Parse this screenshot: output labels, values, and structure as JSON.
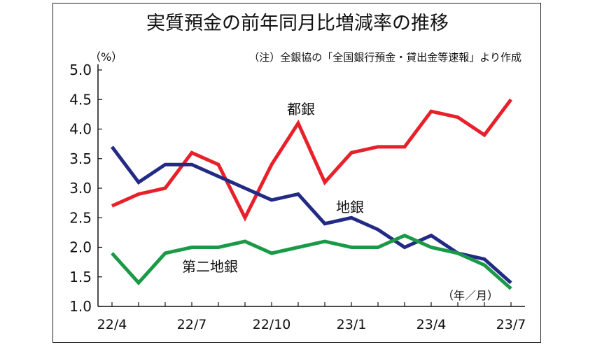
{
  "chart_data": {
    "type": "line",
    "title": "実質預金の前年同月比増減率の推移",
    "note": "（注）全銀協の「全国銀行預金・貸出金等速報」より作成",
    "y_unit": "（%）",
    "x_unit": "（年／月）",
    "ylim": [
      1.0,
      5.0
    ],
    "yticks": [
      "5.0",
      "4.5",
      "4.0",
      "3.5",
      "3.0",
      "2.5",
      "2.0",
      "1.5",
      "1.0"
    ],
    "x_categories": [
      "22/4",
      "22/5",
      "22/6",
      "22/7",
      "22/8",
      "22/9",
      "22/10",
      "22/11",
      "22/12",
      "23/1",
      "23/2",
      "23/3",
      "23/4",
      "23/5",
      "23/6",
      "23/7"
    ],
    "x_tick_labels": [
      "22/4",
      "22/7",
      "22/10",
      "23/1",
      "23/4",
      "23/7"
    ],
    "series": [
      {
        "name": "都銀",
        "color": "#e8202a",
        "values": [
          2.7,
          2.9,
          3.0,
          3.6,
          3.4,
          2.5,
          3.4,
          4.1,
          3.1,
          3.6,
          3.7,
          3.7,
          4.3,
          4.2,
          3.9,
          4.5
        ]
      },
      {
        "name": "地銀",
        "color": "#232a84",
        "values": [
          3.7,
          3.1,
          3.4,
          3.4,
          3.2,
          3.0,
          2.8,
          2.9,
          2.4,
          2.5,
          2.3,
          2.0,
          2.2,
          1.9,
          1.8,
          1.4
        ]
      },
      {
        "name": "第二地銀",
        "color": "#1a9a47",
        "values": [
          1.9,
          1.4,
          1.9,
          2.0,
          2.0,
          2.1,
          1.9,
          2.0,
          2.1,
          2.0,
          2.0,
          2.2,
          2.0,
          1.9,
          1.7,
          1.3
        ]
      }
    ]
  }
}
